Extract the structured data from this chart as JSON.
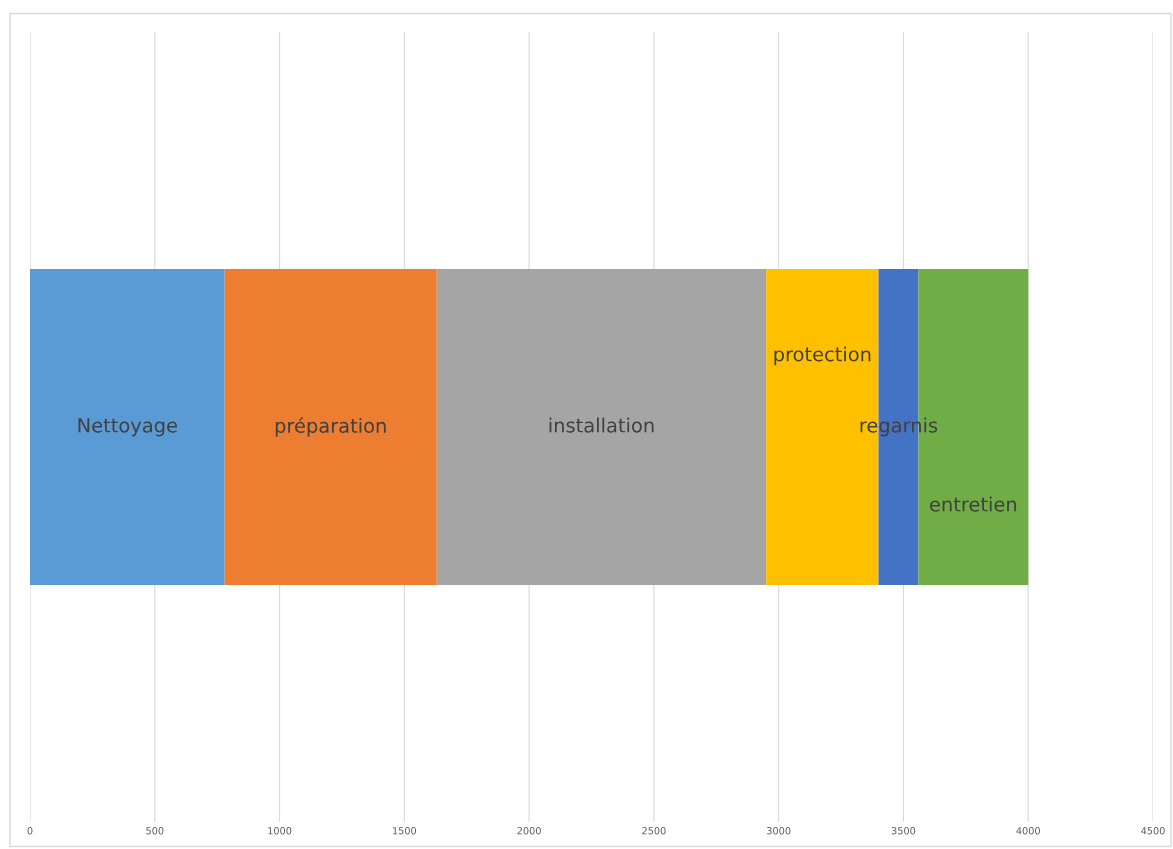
{
  "chart_data": {
    "type": "bar",
    "orientation": "horizontal",
    "stacked": true,
    "categories": [
      null
    ],
    "series": [
      {
        "name": "Nettoyage",
        "color": "#5b9bd5",
        "values": [
          780
        ]
      },
      {
        "name": "préparation",
        "color": "#ed7d31",
        "values": [
          850
        ]
      },
      {
        "name": "installation",
        "color": "#a5a5a5",
        "values": [
          1320
        ]
      },
      {
        "name": "protection",
        "color": "#ffc000",
        "values": [
          450
        ]
      },
      {
        "name": "regarnis",
        "color": "#4472c4",
        "values": [
          160
        ]
      },
      {
        "name": "entretien",
        "color": "#70ad47",
        "values": [
          440
        ]
      }
    ],
    "xlim": [
      0,
      4500
    ],
    "xticks": [
      0,
      500,
      1000,
      1500,
      2000,
      2500,
      3000,
      3500,
      4000,
      4500
    ],
    "grid": "x",
    "legend": false,
    "tick_labels": "x"
  }
}
